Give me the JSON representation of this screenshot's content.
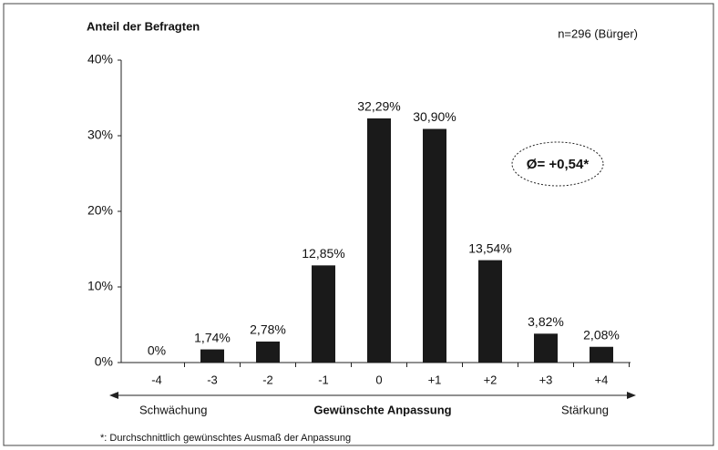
{
  "chart_data": {
    "type": "bar",
    "y_label": "Anteil der Befragten",
    "subtitle": "n=296 (Bürger)",
    "annotation": "Ø= +0,54*",
    "x_label": "Gewünschte Anpassung",
    "x_left_label": "Schwächung",
    "x_right_label": "Stärkung",
    "footnote": "*: Durchschnittlich gewünschtes Ausmaß der Anpassung",
    "categories": [
      "-4",
      "-3",
      "-2",
      "-1",
      "0",
      "+1",
      "+2",
      "+3",
      "+4"
    ],
    "values": [
      0,
      1.74,
      2.78,
      12.85,
      32.29,
      30.9,
      13.54,
      3.82,
      2.08
    ],
    "value_labels": [
      "0%",
      "1,74%",
      "2,78%",
      "12,85%",
      "32,29%",
      "30,90%",
      "13,54%",
      "3,82%",
      "2,08%"
    ],
    "color": "#1a1a1a",
    "ylim": [
      0,
      40
    ],
    "yticks": [
      {
        "value": 0,
        "label": "0%"
      },
      {
        "value": 10,
        "label": "10%"
      },
      {
        "value": 20,
        "label": "20%"
      },
      {
        "value": 30,
        "label": "30%"
      },
      {
        "value": 40,
        "label": "40%"
      }
    ],
    "grid": false
  }
}
